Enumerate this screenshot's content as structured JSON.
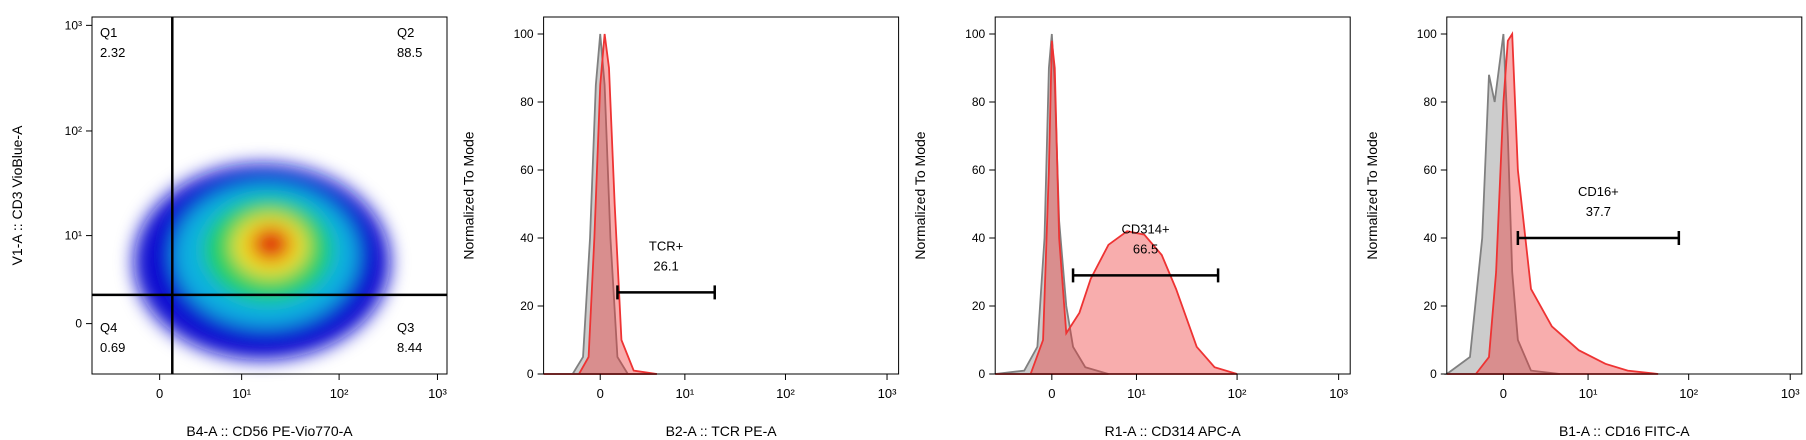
{
  "chart_data": [
    {
      "type": "density",
      "xlabel": "B4-A :: CD56 PE-Vio770-A",
      "ylabel": "V1-A :: CD3 VioBlue-A",
      "xlim": [
        -7,
        1250
      ],
      "ylim": [
        -4,
        1200
      ],
      "xticks": [
        0,
        {
          "value": 10,
          "label": "10¹"
        },
        {
          "value": 100,
          "label": "10²"
        },
        {
          "value": 1000,
          "label": "10³"
        }
      ],
      "yticks": [
        0,
        {
          "value": 10,
          "label": "10¹"
        },
        {
          "value": 100,
          "label": "10²"
        },
        {
          "value": 1000,
          "label": "10³"
        }
      ],
      "quadrant_gate": {
        "x": 0.9,
        "y": 2
      },
      "quadrants": [
        {
          "name": "Q1",
          "value": 2.32
        },
        {
          "name": "Q2",
          "value": 88.5
        },
        {
          "name": "Q3",
          "value": 8.44
        },
        {
          "name": "Q4",
          "value": 0.69
        }
      ]
    },
    {
      "type": "area",
      "xlabel": "B2-A :: TCR PE-A",
      "ylabel": "Normalized To Mode",
      "xlim": [
        -5,
        1300
      ],
      "ylim": [
        0,
        105
      ],
      "xticks": [
        0,
        {
          "value": 10,
          "label": "10¹"
        },
        {
          "value": 100,
          "label": "10²"
        },
        {
          "value": 1000,
          "label": "10³"
        }
      ],
      "yticks": [
        0,
        20,
        40,
        60,
        80,
        100
      ],
      "series": [
        {
          "color": "#808080",
          "x": [
            -5,
            -2,
            -1.2,
            -0.7,
            -0.3,
            0,
            0.3,
            0.7,
            1.2,
            2,
            5
          ],
          "values": [
            0,
            0,
            5,
            40,
            85,
            100,
            85,
            40,
            5,
            0,
            0
          ]
        },
        {
          "color": "#ee3333",
          "x": [
            -5,
            -1.5,
            -0.8,
            -0.4,
            0,
            0.3,
            0.6,
            1,
            1.5,
            2.5,
            5
          ],
          "values": [
            0,
            0,
            5,
            40,
            85,
            100,
            90,
            50,
            10,
            1,
            0
          ]
        }
      ],
      "gate": {
        "name": "TCR+",
        "value": 26.1,
        "x": [
          1.2,
          20
        ],
        "y": 24
      }
    },
    {
      "type": "area",
      "xlabel": "R1-A :: CD314 APC-A",
      "ylabel": "Normalized To Mode",
      "xlim": [
        -5,
        1300
      ],
      "ylim": [
        0,
        105
      ],
      "xticks": [
        0,
        {
          "value": 10,
          "label": "10¹"
        },
        {
          "value": 100,
          "label": "10²"
        },
        {
          "value": 1000,
          "label": "10³"
        }
      ],
      "yticks": [
        0,
        20,
        40,
        60,
        80,
        100
      ],
      "series": [
        {
          "color": "#808080",
          "x": [
            -5,
            -2,
            -1,
            -0.5,
            -0.2,
            0,
            0.2,
            0.5,
            1,
            1.5,
            2.5,
            5
          ],
          "values": [
            0,
            1,
            8,
            40,
            90,
            100,
            85,
            45,
            20,
            8,
            2,
            0
          ]
        },
        {
          "color": "#ee3333",
          "x": [
            -5,
            -1.5,
            -0.6,
            -0.2,
            0,
            0.2,
            0.5,
            1,
            2,
            3,
            5,
            8,
            12,
            18,
            25,
            40,
            60,
            100
          ],
          "values": [
            0,
            0,
            10,
            60,
            98,
            90,
            40,
            12,
            18,
            28,
            38,
            42,
            41,
            35,
            25,
            8,
            2,
            0
          ]
        }
      ],
      "gate": {
        "name": "CD314+",
        "value": 66.5,
        "x": [
          1.5,
          65
        ],
        "y": 29
      }
    },
    {
      "type": "area",
      "xlabel": "B1-A :: CD16 FITC-A",
      "ylabel": "Normalized To Mode",
      "xlim": [
        -5,
        1300
      ],
      "ylim": [
        0,
        105
      ],
      "xticks": [
        0,
        {
          "value": 10,
          "label": "10¹"
        },
        {
          "value": 100,
          "label": "10²"
        },
        {
          "value": 1000,
          "label": "10³"
        }
      ],
      "yticks": [
        0,
        20,
        40,
        60,
        80,
        100
      ],
      "series": [
        {
          "color": "#808080",
          "x": [
            -5,
            -2.5,
            -1.5,
            -1,
            -0.6,
            -0.3,
            0,
            0.3,
            0.6,
            1,
            2,
            5
          ],
          "values": [
            0,
            5,
            40,
            88,
            80,
            90,
            100,
            70,
            30,
            10,
            1,
            0
          ]
        },
        {
          "color": "#ee3333",
          "x": [
            -5,
            -2,
            -1,
            -0.5,
            0,
            0.3,
            0.6,
            1,
            2,
            4,
            8,
            15,
            25,
            50
          ],
          "values": [
            0,
            0,
            5,
            30,
            80,
            98,
            100,
            60,
            25,
            14,
            7,
            3,
            1,
            0
          ]
        }
      ],
      "gate": {
        "name": "CD16+",
        "value": 37.7,
        "x": [
          1,
          80
        ],
        "y": 40
      }
    }
  ]
}
